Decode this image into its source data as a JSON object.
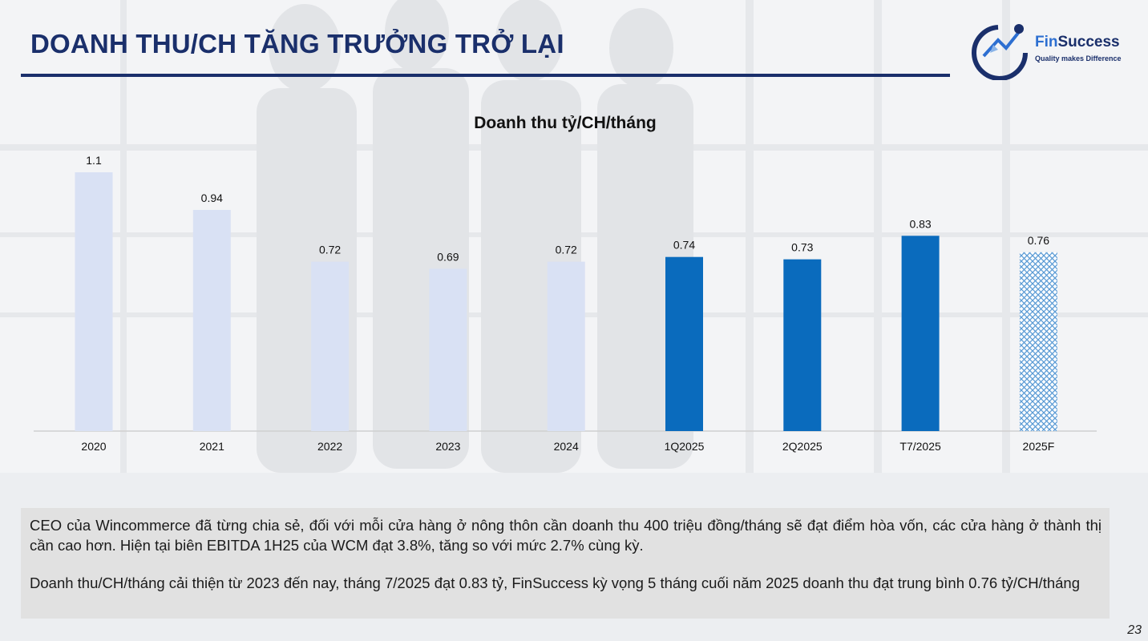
{
  "slide": {
    "title": "DOANH THU/CH TĂNG TRƯỞNG TRỞ LẠI",
    "page_number": "23"
  },
  "logo": {
    "name_prefix": "Fin",
    "name_suffix": "Success",
    "tagline": "Quality makes Difference",
    "color_primary": "#1a2f6b",
    "color_accent": "#2d6fd1"
  },
  "chart_data": {
    "type": "bar",
    "title": "Doanh thu tỷ/CH/tháng",
    "xlabel": "",
    "ylabel": "",
    "ylim": [
      0,
      1.1
    ],
    "grid": false,
    "legend": "none",
    "categories": [
      "2020",
      "2021",
      "2022",
      "2023",
      "2024",
      "1Q2025",
      "2Q2025",
      "T7/2025",
      "2025F"
    ],
    "values": [
      1.1,
      0.94,
      0.72,
      0.69,
      0.72,
      0.74,
      0.73,
      0.83,
      0.76
    ],
    "labels": [
      "1.1",
      "0.94",
      "0.72",
      "0.69",
      "0.72",
      "0.74",
      "0.73",
      "0.83",
      "0.76"
    ],
    "bar_styles": [
      "light",
      "light",
      "light",
      "light",
      "light",
      "solid",
      "solid",
      "solid",
      "forecast"
    ],
    "colors": {
      "light": "#d9e1f4",
      "solid": "#0a6bbd",
      "forecast": "#5b9bd5",
      "axis": "#d0d0d0"
    }
  },
  "note": {
    "paragraph1": "CEO của Wincommerce đã từng chia sẻ, đối với mỗi cửa hàng ở nông thôn cần doanh thu 400 triệu đồng/tháng sẽ đạt điểm hòa vốn, các cửa hàng ở thành thị cần cao hơn. Hiện tại biên EBITDA 1H25 của WCM đạt 3.8%, tăng so với mức 2.7% cùng kỳ.",
    "paragraph2": "Doanh thu/CH/tháng cải thiện từ 2023 đến nay, tháng 7/2025 đạt 0.83 tỷ, FinSuccess kỳ vọng 5 tháng cuối năm 2025 doanh thu đạt trung bình 0.76 tỷ/CH/tháng"
  }
}
